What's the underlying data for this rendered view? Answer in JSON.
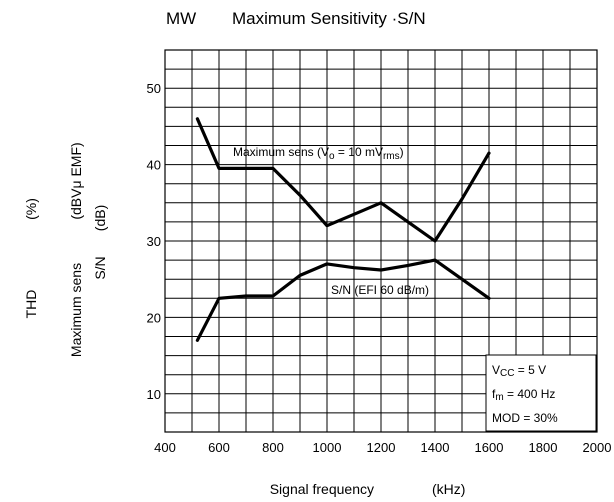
{
  "chart_data": {
    "type": "line",
    "title_prefix": "MW",
    "title": "Maximum Sensitivity ·S/N",
    "xlabel": "Signal frequency",
    "xunit": "(kHz)",
    "ylabel_thd": "THD",
    "ylabel_thd_unit": "(%)",
    "ylabel_main": "Maximum sens",
    "ylabel_main_unit": "(dBVμ EMF)",
    "ylabel_sn": "S/N",
    "ylabel_sn_unit": "(dB)",
    "xlim": [
      400,
      2000
    ],
    "ylim": [
      5,
      55
    ],
    "x_ticks": [
      400,
      600,
      800,
      1000,
      1200,
      1400,
      1600,
      1800,
      2000
    ],
    "y_ticks": [
      10,
      20,
      30,
      40,
      50
    ],
    "x_gridlines": [
      400,
      500,
      600,
      700,
      800,
      900,
      1000,
      1100,
      1200,
      1300,
      1400,
      1500,
      1600,
      1700,
      1800,
      1900,
      2000
    ],
    "y_gridlines": [
      5,
      7.5,
      10,
      12.5,
      15,
      17.5,
      20,
      22.5,
      25,
      27.5,
      30,
      32.5,
      35,
      37.5,
      40,
      42.5,
      45,
      47.5,
      50,
      52.5,
      55
    ],
    "grid": true,
    "series": [
      {
        "label": "Maximum sens (V",
        "label_sub1": "o",
        "label_mid": " = 10 mV",
        "label_sub2": "rms",
        "label_end": ")",
        "x": [
          520,
          600,
          700,
          800,
          900,
          1000,
          1100,
          1200,
          1300,
          1400,
          1500,
          1600
        ],
        "values": [
          46.0,
          39.5,
          39.5,
          39.5,
          36.0,
          32.0,
          33.5,
          35.0,
          32.5,
          30.0,
          35.5,
          41.5
        ]
      },
      {
        "label": "S/N (EFI 60 dB/m)",
        "x": [
          520,
          600,
          700,
          800,
          900,
          1000,
          1100,
          1200,
          1300,
          1400,
          1500,
          1600
        ],
        "values": [
          17.0,
          22.5,
          22.8,
          22.8,
          25.5,
          27.0,
          26.5,
          26.2,
          26.8,
          27.5,
          25.0,
          22.5
        ]
      }
    ],
    "conditions": {
      "vcc_prefix": "V",
      "vcc_sub": "CC",
      "vcc_value": " = 5 V",
      "fm_prefix": "f",
      "fm_sub": "m",
      "fm_value": " = 400 Hz",
      "mod": "MOD = 30%"
    }
  }
}
